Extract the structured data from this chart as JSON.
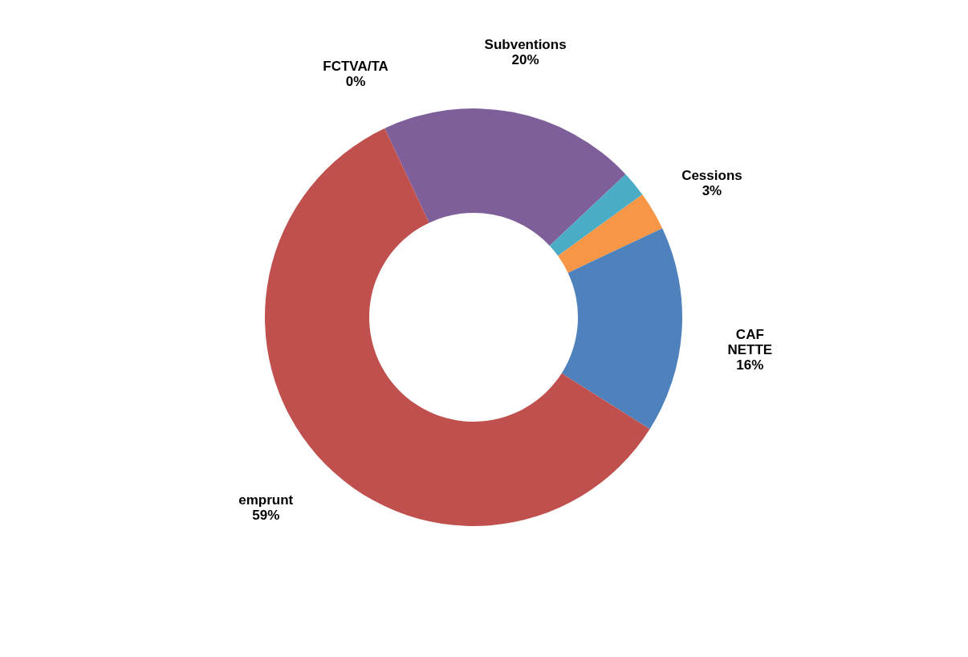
{
  "chart_data": {
    "type": "donut",
    "categories": [
      "Subventions",
      null,
      "Cessions",
      "CAF NETTE",
      "emprunt",
      "FCTVA/TA"
    ],
    "values": [
      20,
      2,
      3,
      16,
      59,
      0
    ],
    "value_labels": [
      "20%",
      null,
      "3%",
      "16%",
      "59%",
      "0%"
    ],
    "colors": [
      "#7f5f9a",
      "#4bacc6",
      "#f79646",
      "#4f81bd",
      "#c0504d",
      "#9bbb59"
    ],
    "legend": false
  }
}
